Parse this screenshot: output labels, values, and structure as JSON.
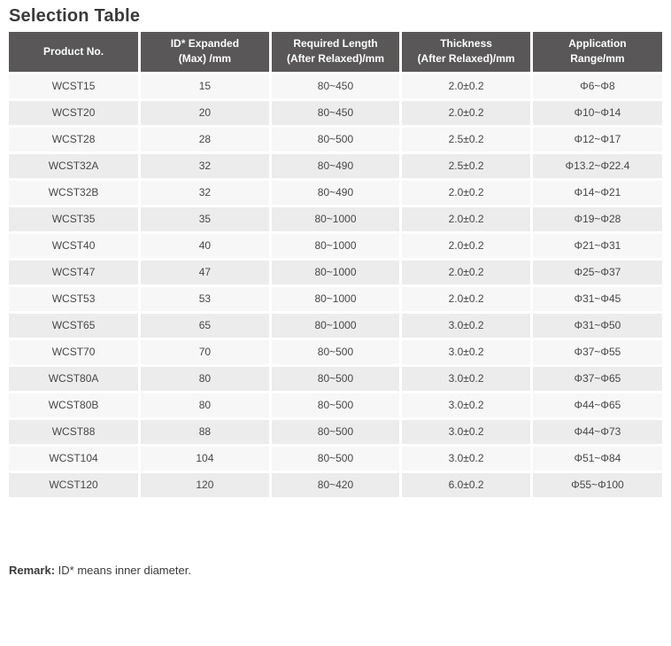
{
  "page": {
    "title": "Selection Table"
  },
  "colors": {
    "header_bg": "#595757",
    "header_text": "#ffffff",
    "row_odd_bg": "#f7f7f7",
    "row_even_bg": "#ececec",
    "cell_text": "#474747",
    "title_text": "#3a3a3a",
    "separator": "#ffffff"
  },
  "table": {
    "columns": [
      {
        "line1": "Product No.",
        "line2": ""
      },
      {
        "line1": "ID* Expanded",
        "line2": "(Max) /mm"
      },
      {
        "line1": "Required Length",
        "line2": "(After Relaxed)/mm"
      },
      {
        "line1": "Thickness",
        "line2": "(After Relaxed)/mm"
      },
      {
        "line1": "Application",
        "line2": "Range/mm"
      }
    ],
    "rows": [
      [
        "WCST15",
        "15",
        "80~450",
        "2.0±0.2",
        "Φ6~Φ8"
      ],
      [
        "WCST20",
        "20",
        "80~450",
        "2.0±0.2",
        "Φ10~Φ14"
      ],
      [
        "WCST28",
        "28",
        "80~500",
        "2.5±0.2",
        "Φ12~Φ17"
      ],
      [
        "WCST32A",
        "32",
        "80~490",
        "2.5±0.2",
        "Φ13.2~Φ22.4"
      ],
      [
        "WCST32B",
        "32",
        "80~490",
        "2.0±0.2",
        "Φ14~Φ21"
      ],
      [
        "WCST35",
        "35",
        "80~1000",
        "2.0±0.2",
        "Φ19~Φ28"
      ],
      [
        "WCST40",
        "40",
        "80~1000",
        "2.0±0.2",
        "Φ21~Φ31"
      ],
      [
        "WCST47",
        "47",
        "80~1000",
        "2.0±0.2",
        "Φ25~Φ37"
      ],
      [
        "WCST53",
        "53",
        "80~1000",
        "2.0±0.2",
        "Φ31~Φ45"
      ],
      [
        "WCST65",
        "65",
        "80~1000",
        "3.0±0.2",
        "Φ31~Φ50"
      ],
      [
        "WCST70",
        "70",
        "80~500",
        "3.0±0.2",
        "Φ37~Φ55"
      ],
      [
        "WCST80A",
        "80",
        "80~500",
        "3.0±0.2",
        "Φ37~Φ65"
      ],
      [
        "WCST80B",
        "80",
        "80~500",
        "3.0±0.2",
        "Φ44~Φ65"
      ],
      [
        "WCST88",
        "88",
        "80~500",
        "3.0±0.2",
        "Φ44~Φ73"
      ],
      [
        "WCST104",
        "104",
        "80~500",
        "3.0±0.2",
        "Φ51~Φ84"
      ],
      [
        "WCST120",
        "120",
        "80~420",
        "6.0±0.2",
        "Φ55~Φ100"
      ]
    ]
  },
  "remark": {
    "label": "Remark:",
    "text": " ID* means inner diameter."
  }
}
